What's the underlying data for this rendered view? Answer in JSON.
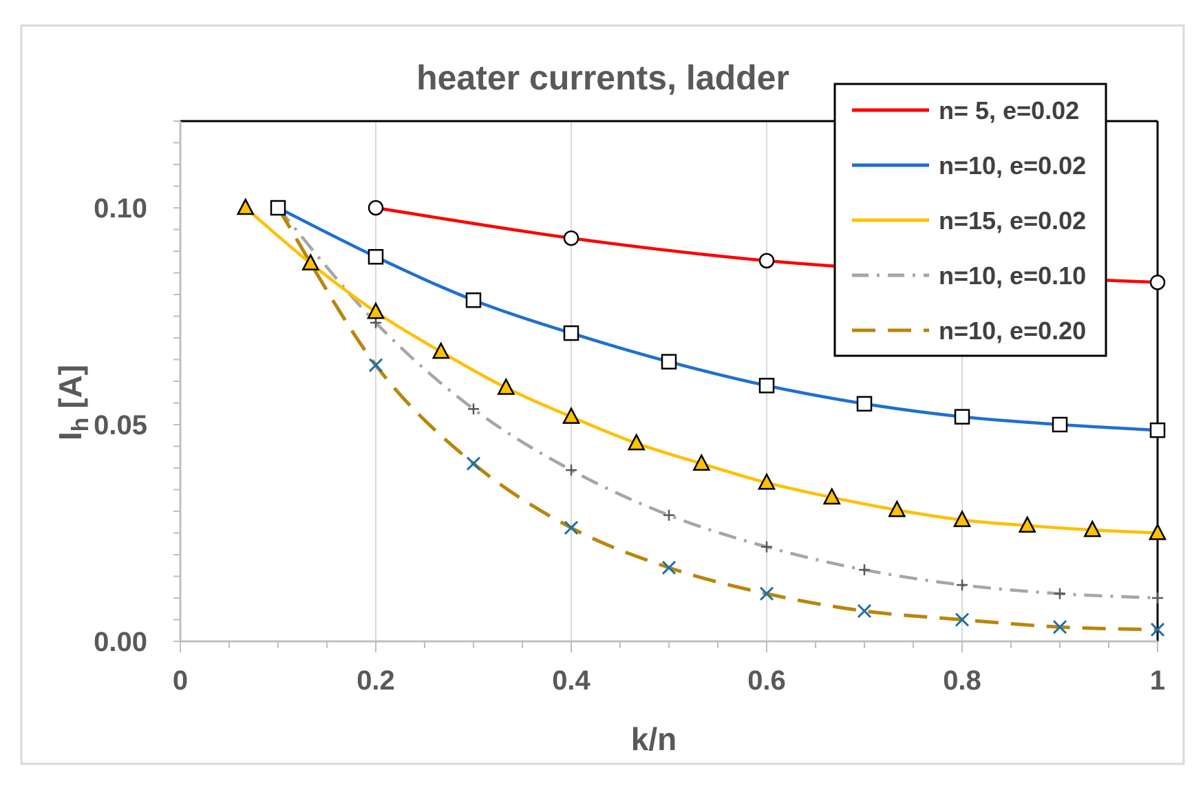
{
  "chart_data": {
    "type": "line",
    "title": "heater currents, ladder",
    "xlabel": "k/n",
    "ylabel_main": "I",
    "ylabel_sub": "h",
    "ylabel_unit": " [A]",
    "xlim": [
      0,
      1
    ],
    "ylim": [
      0,
      0.12
    ],
    "x_ticks": [
      0,
      0.2,
      0.4,
      0.6,
      0.8,
      1
    ],
    "x_tick_labels": [
      "0",
      "0.2",
      "0.4",
      "0.6",
      "0.8",
      "1"
    ],
    "y_ticks": [
      0,
      0.05,
      0.1
    ],
    "y_tick_labels": [
      "0.00",
      "0.05",
      "0.10"
    ],
    "grid": "vertical",
    "legend_position": "top-right",
    "series": [
      {
        "name": "n= 5, e=0.02",
        "color": "#ff0000",
        "dash": "solid",
        "marker": "circle",
        "x": [
          0.2,
          0.4,
          0.6,
          0.8,
          1.0
        ],
        "y": [
          0.1,
          0.093,
          0.0878,
          0.0848,
          0.0828
        ]
      },
      {
        "name": "n=10, e=0.02",
        "color": "#1f6fd1",
        "dash": "solid",
        "marker": "square",
        "x": [
          0.1,
          0.2,
          0.3,
          0.4,
          0.5,
          0.6,
          0.7,
          0.8,
          0.9,
          1.0
        ],
        "y": [
          0.1,
          0.0887,
          0.0787,
          0.0711,
          0.0645,
          0.059,
          0.0548,
          0.0518,
          0.05,
          0.0487
        ]
      },
      {
        "name": "n=15, e=0.02",
        "color": "#ffc000",
        "dash": "solid",
        "marker": "triangle",
        "x": [
          0.0667,
          0.1333,
          0.2,
          0.2667,
          0.3333,
          0.4,
          0.4667,
          0.5333,
          0.6,
          0.6667,
          0.7333,
          0.8,
          0.8667,
          0.9333,
          1.0
        ],
        "y": [
          0.1,
          0.0872,
          0.076,
          0.0668,
          0.0585,
          0.0518,
          0.0457,
          0.041,
          0.0366,
          0.0332,
          0.0303,
          0.028,
          0.0267,
          0.0257,
          0.025
        ]
      },
      {
        "name": "n=10, e=0.10",
        "color": "#a6a6a6",
        "dash": "dashdot",
        "marker": "plus",
        "x": [
          0.1,
          0.2,
          0.3,
          0.4,
          0.5,
          0.6,
          0.7,
          0.8,
          0.9,
          1.0
        ],
        "y": [
          0.1,
          0.0735,
          0.0536,
          0.0395,
          0.0291,
          0.0218,
          0.0165,
          0.013,
          0.011,
          0.01
        ]
      },
      {
        "name": "n=10, e=0.20",
        "color": "#b8860b",
        "dash": "dashed",
        "marker": "x",
        "x": [
          0.1,
          0.2,
          0.3,
          0.4,
          0.5,
          0.6,
          0.7,
          0.8,
          0.9,
          1.0
        ],
        "y": [
          0.1,
          0.0637,
          0.041,
          0.0262,
          0.017,
          0.011,
          0.007,
          0.005,
          0.0033,
          0.0027
        ]
      }
    ]
  }
}
